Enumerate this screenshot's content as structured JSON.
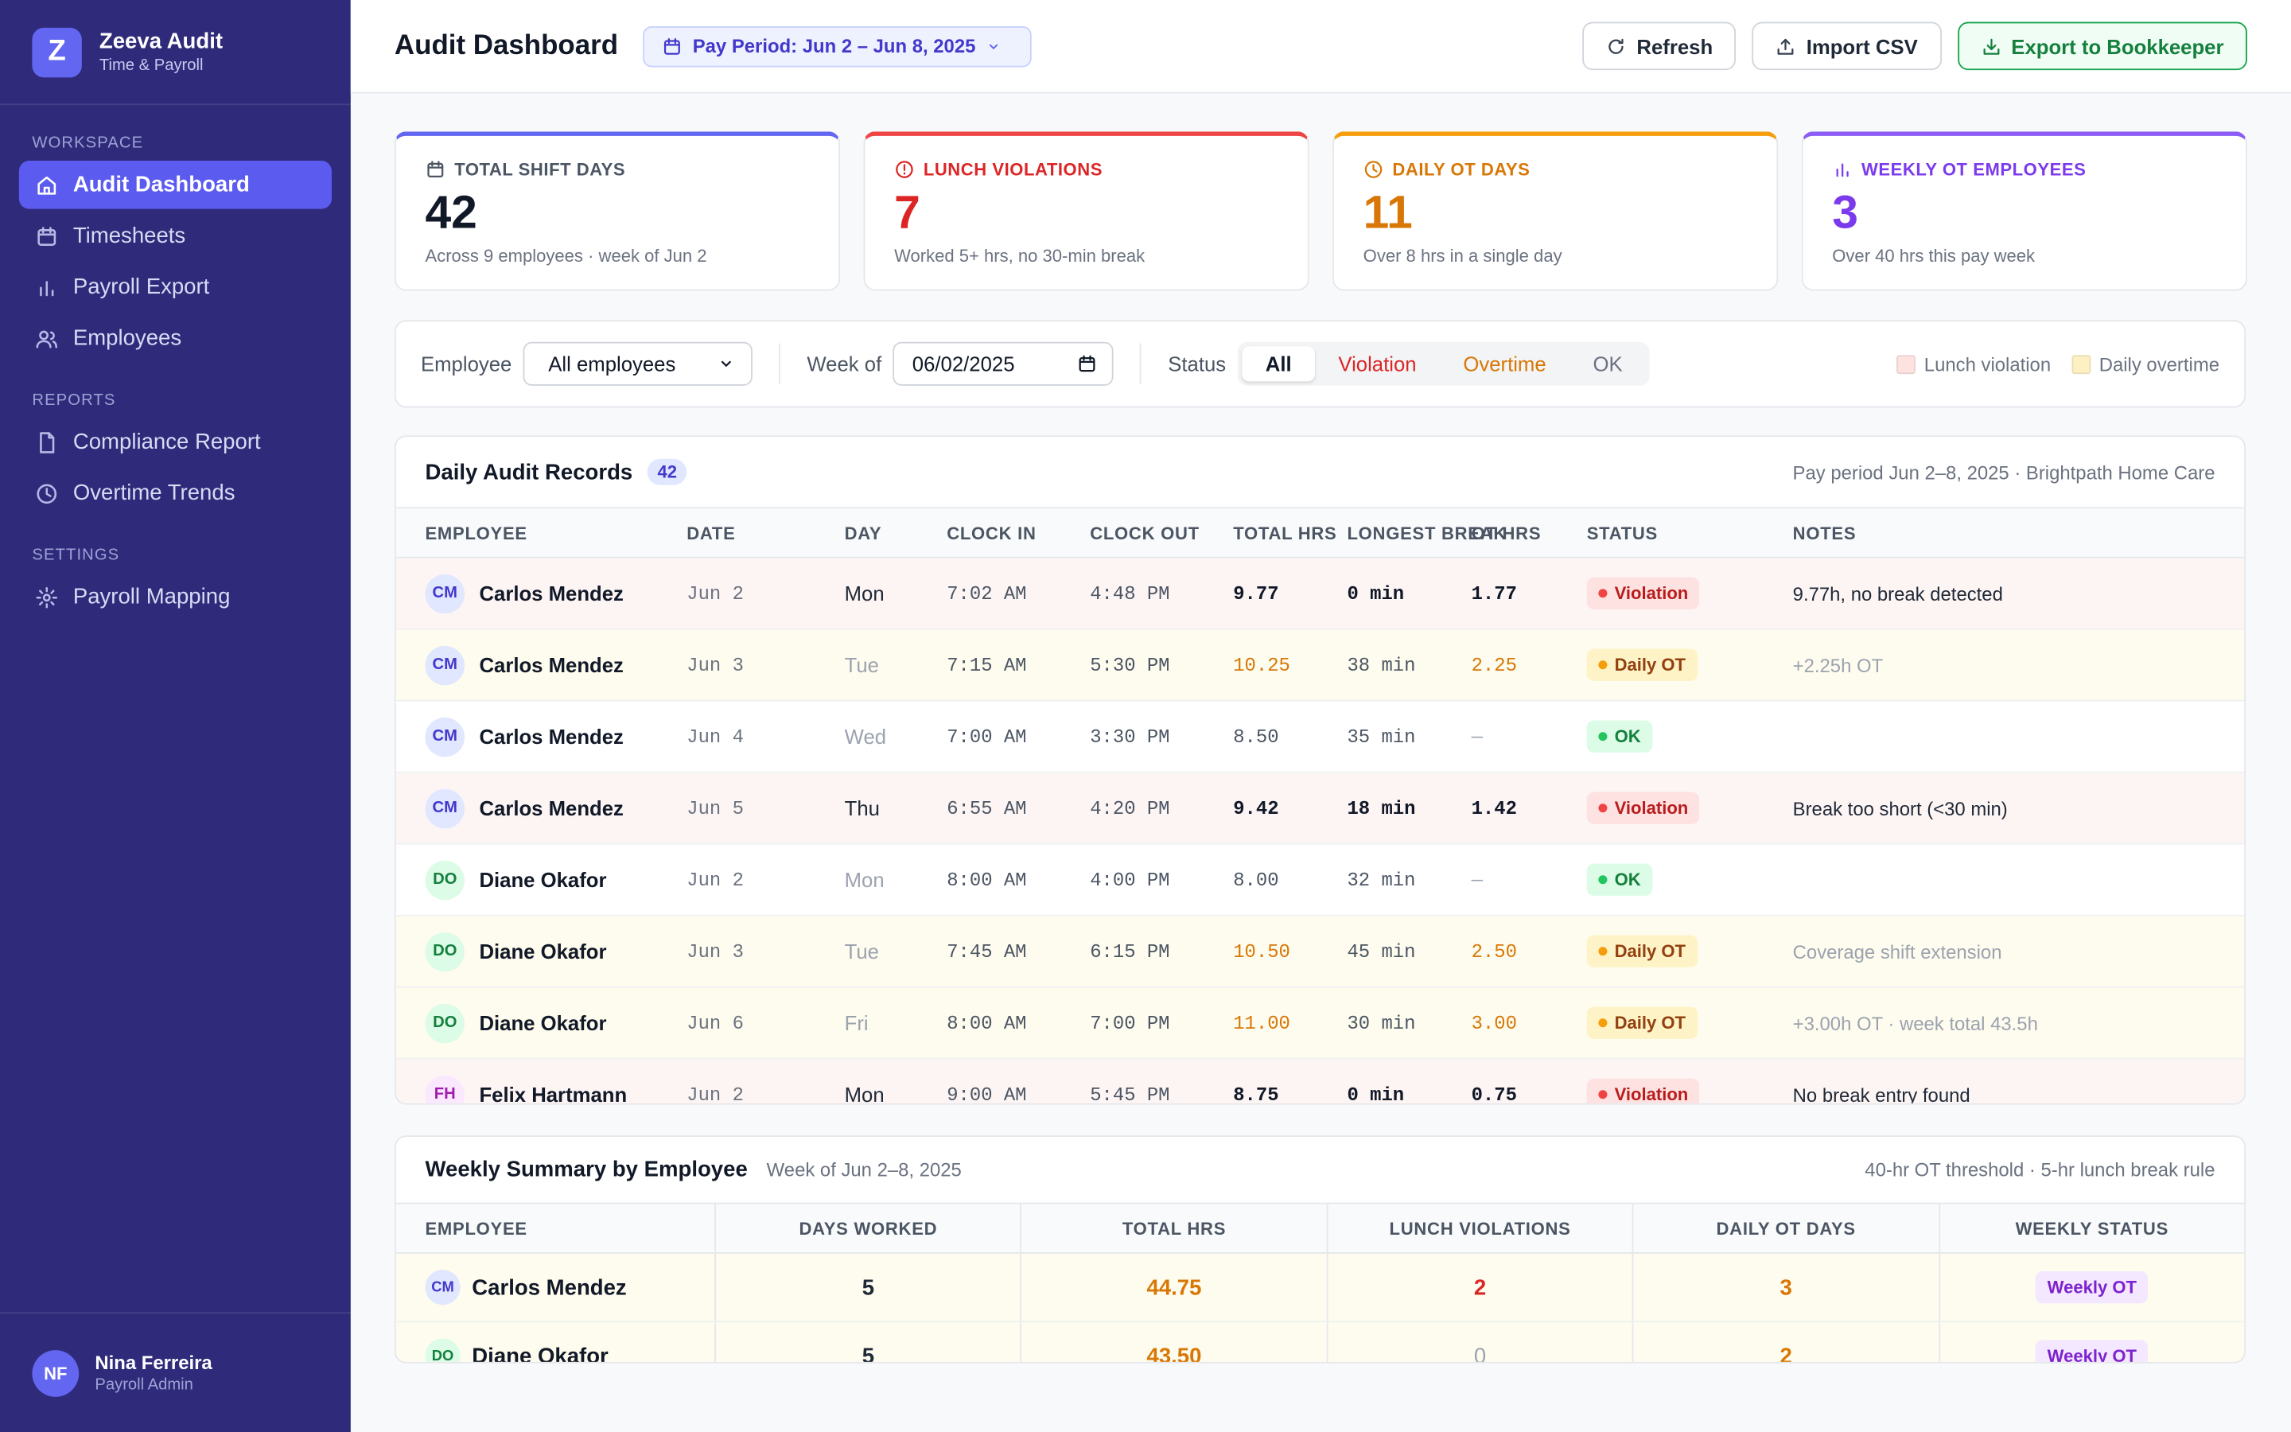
{
  "sidebar": {
    "brand": {
      "logo": "Z",
      "name": "Zeeva Audit",
      "tagline": "Time & Payroll"
    },
    "sections": [
      {
        "title": "WORKSPACE",
        "items": [
          {
            "label": "Audit Dashboard",
            "active": true
          },
          {
            "label": "Timesheets"
          },
          {
            "label": "Payroll Export"
          },
          {
            "label": "Employees"
          }
        ]
      },
      {
        "title": "REPORTS",
        "items": [
          {
            "label": "Compliance Report"
          },
          {
            "label": "Overtime Trends"
          }
        ]
      },
      {
        "title": "SETTINGS",
        "items": [
          {
            "label": "Payroll Mapping"
          }
        ]
      }
    ],
    "user": {
      "initials": "NF",
      "name": "Nina Ferreira",
      "role": "Payroll Admin"
    }
  },
  "header": {
    "title": "Audit Dashboard",
    "period": "Pay Period: Jun 2 – Jun 8, 2025",
    "buttons": [
      "Refresh",
      "Import CSV",
      "Export to Bookkeeper"
    ]
  },
  "stats": [
    {
      "label": "TOTAL SHIFT DAYS",
      "value": 42,
      "note": "Across 9 employees · week of Jun 2",
      "accent": "#6366f1",
      "label_color": "#4b5563",
      "value_color": "#111827"
    },
    {
      "label": "LUNCH VIOLATIONS",
      "value": 7,
      "note": "Worked 5+ hrs, no 30-min break",
      "accent": "#ef4444",
      "label_color": "#dc2626",
      "value_color": "#dc2626"
    },
    {
      "label": "DAILY OT DAYS",
      "value": 11,
      "note": "Over 8 hrs in a single day",
      "accent": "#f59e0b",
      "label_color": "#d97706",
      "value_color": "#d97706"
    },
    {
      "label": "WEEKLY OT EMPLOYEES",
      "value": 3,
      "note": "Over 40 hrs this pay week",
      "accent": "#8b5cf6",
      "label_color": "#7c3aed",
      "value_color": "#7c3aed"
    }
  ],
  "filters": {
    "employee_label": "Employee",
    "employee_value": "All employees",
    "week_label": "Week of",
    "week_value": "06/02/2025",
    "status_label": "Status",
    "segments": [
      {
        "label": "All",
        "color": "#111827",
        "active": true
      },
      {
        "label": "Violation",
        "color": "#dc2626"
      },
      {
        "label": "Overtime",
        "color": "#d97706"
      },
      {
        "label": "OK",
        "color": "#6b7280"
      }
    ],
    "legend": [
      {
        "label": "Lunch violation",
        "color": "#fde2e0"
      },
      {
        "label": "Daily overtime",
        "color": "#fdf0c2"
      }
    ]
  },
  "records": {
    "title": "Daily Audit Records",
    "count": 42,
    "meta": "Pay period Jun 2–8, 2025 · Brightpath Home Care",
    "columns": [
      "EMPLOYEE",
      "DATE",
      "DAY",
      "CLOCK IN",
      "CLOCK OUT",
      "TOTAL HRS",
      "LONGEST BREAK",
      "OT HRS",
      "STATUS",
      "NOTES"
    ],
    "rows": [
      {
        "initials": "CM",
        "name": "Carlos Mendez",
        "date": "Jun 2",
        "day": "Mon",
        "in": "7:02 AM",
        "out": "4:48 PM",
        "total": "9.77",
        "break": "0 min",
        "ot": "1.77",
        "status": "Violation",
        "tone": "red",
        "notes": "9.77h, no break detected"
      },
      {
        "initials": "CM",
        "name": "Carlos Mendez",
        "date": "Jun 3",
        "day": "Tue",
        "in": "7:15 AM",
        "out": "5:30 PM",
        "total": "10.25",
        "break": "38 min",
        "ot": "2.25",
        "status": "Daily OT",
        "tone": "amber",
        "notes": "+2.25h OT"
      },
      {
        "initials": "CM",
        "name": "Carlos Mendez",
        "date": "Jun 4",
        "day": "Wed",
        "in": "7:00 AM",
        "out": "3:30 PM",
        "total": "8.50",
        "break": "35 min",
        "ot": "—",
        "status": "OK",
        "tone": "green",
        "notes": null
      },
      {
        "initials": "CM",
        "name": "Carlos Mendez",
        "date": "Jun 5",
        "day": "Thu",
        "in": "6:55 AM",
        "out": "4:20 PM",
        "total": "9.42",
        "break": "18 min",
        "ot": "1.42",
        "status": "Violation",
        "tone": "red",
        "notes": "Break too short (<30 min)"
      },
      {
        "initials": "DO",
        "name": "Diane Okafor",
        "date": "Jun 2",
        "day": "Mon",
        "in": "8:00 AM",
        "out": "4:00 PM",
        "total": "8.00",
        "break": "32 min",
        "ot": "—",
        "status": "OK",
        "tone": "green",
        "notes": null
      },
      {
        "initials": "DO",
        "name": "Diane Okafor",
        "date": "Jun 3",
        "day": "Tue",
        "in": "7:45 AM",
        "out": "6:15 PM",
        "total": "10.50",
        "break": "45 min",
        "ot": "2.50",
        "status": "Daily OT",
        "tone": "amber",
        "notes": "Coverage shift extension"
      },
      {
        "initials": "DO",
        "name": "Diane Okafor",
        "date": "Jun 6",
        "day": "Fri",
        "in": "8:00 AM",
        "out": "7:00 PM",
        "total": "11.00",
        "break": "30 min",
        "ot": "3.00",
        "status": "Daily OT",
        "tone": "amber",
        "notes": "+3.00h OT · week total 43.5h"
      },
      {
        "initials": "FH",
        "name": "Felix Hartmann",
        "date": "Jun 2",
        "day": "Mon",
        "in": "9:00 AM",
        "out": "5:45 PM",
        "total": "8.75",
        "break": "0 min",
        "ot": "0.75",
        "status": "Violation",
        "tone": "red",
        "notes": "No break entry found"
      }
    ]
  },
  "summary": {
    "title": "Weekly Summary by Employee",
    "subtitle": "Week of Jun 2–8, 2025",
    "meta": "40-hr OT threshold · 5-hr lunch break rule",
    "columns": [
      "EMPLOYEE",
      "DAYS WORKED",
      "TOTAL HRS",
      "LUNCH VIOLATIONS",
      "DAILY OT DAYS",
      "WEEKLY STATUS"
    ],
    "rows": [
      {
        "initials": "CM",
        "name": "Carlos Mendez",
        "days": 5,
        "total": "44.75",
        "violations": 2,
        "ot_days": 3,
        "status": "Weekly OT"
      },
      {
        "initials": "DO",
        "name": "Diane Okafor",
        "days": 5,
        "total": "43.50",
        "violations": 0,
        "ot_days": 2,
        "status": "Weekly OT"
      }
    ]
  }
}
